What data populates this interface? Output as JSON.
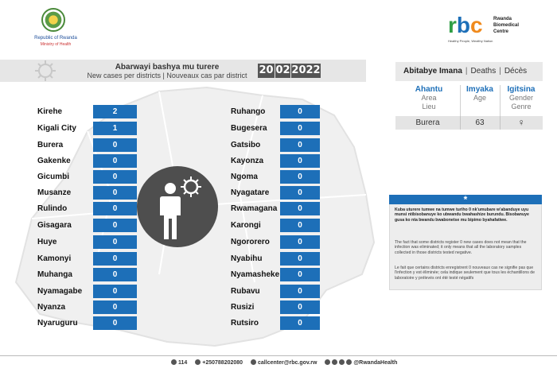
{
  "header": {
    "moh_line1": "Republic of Rwanda",
    "moh_line2": "Ministry of Health",
    "rbc_logo_r": "r",
    "rbc_logo_b": "b",
    "rbc_logo_c": "c",
    "rbc_name_1": "Rwanda",
    "rbc_name_2": "Biomedical",
    "rbc_name_3": "Centre",
    "rbc_tagline": "Healthy People, Wealthy Nation"
  },
  "title": {
    "line1": "Abarwayi bashya mu turere",
    "line2": "New cases per districts  |  Nouveaux cas par district",
    "date_day": "20",
    "date_month": "02",
    "date_year": "2022"
  },
  "districts_left": [
    {
      "name": "Kirehe",
      "value": "2"
    },
    {
      "name": "Kigali City",
      "value": "1"
    },
    {
      "name": "Burera",
      "value": "0"
    },
    {
      "name": "Gakenke",
      "value": "0"
    },
    {
      "name": "Gicumbi",
      "value": "0"
    },
    {
      "name": "Musanze",
      "value": "0"
    },
    {
      "name": "Rulindo",
      "value": "0"
    },
    {
      "name": "Gisagara",
      "value": "0"
    },
    {
      "name": "Huye",
      "value": "0"
    },
    {
      "name": "Kamonyi",
      "value": "0"
    },
    {
      "name": "Muhanga",
      "value": "0"
    },
    {
      "name": "Nyamagabe",
      "value": "0"
    },
    {
      "name": "Nyanza",
      "value": "0"
    },
    {
      "name": "Nyaruguru",
      "value": "0"
    }
  ],
  "districts_right": [
    {
      "name": "Ruhango",
      "value": "0"
    },
    {
      "name": "Bugesera",
      "value": "0"
    },
    {
      "name": "Gatsibo",
      "value": "0"
    },
    {
      "name": "Kayonza",
      "value": "0"
    },
    {
      "name": "Ngoma",
      "value": "0"
    },
    {
      "name": "Nyagatare",
      "value": "0"
    },
    {
      "name": "Rwamagana",
      "value": "0"
    },
    {
      "name": "Karongi",
      "value": "0"
    },
    {
      "name": "Ngororero",
      "value": "0"
    },
    {
      "name": "Nyabihu",
      "value": "0"
    },
    {
      "name": "Nyamasheke",
      "value": "0"
    },
    {
      "name": "Rubavu",
      "value": "0"
    },
    {
      "name": "Rusizi",
      "value": "0"
    },
    {
      "name": "Rutsiro",
      "value": "0"
    }
  ],
  "deaths": {
    "title_rw": "Abitabye Imana",
    "title_en": "Deaths",
    "title_fr": "Décès",
    "col1_a": "Ahantu",
    "col1_b": "Area",
    "col1_c": "Lieu",
    "col2_a": "Imyaka",
    "col2_b": "Age",
    "col3_a": "Igitsina",
    "col3_b": "Gender",
    "col3_c": "Genre",
    "row_place": "Burera",
    "row_age": "63",
    "row_gender": "♀"
  },
  "note": {
    "icon": "*",
    "rw": "Kuba uturere tumwe na tumwe turiho 0 nk'umubare w'abanduye uyu munsi ntibisobanuye ko ubwandu bwahashize burundu. Bisobanuye gusa ko nta bwandu bwabonetse mu bipimo byahafatiwe.",
    "en": "The fact that some districts register 0 new cases does not mean that the infection was eliminated; it only means that all the laboratory samples collected in those districts tested negative.",
    "fr": "Le fait que certains districts enregistrent 0 nouveaux cas ne signifie pas que l'infection y est éliminée; cela indique seulement que tous les échantillons de laboratoire y prélevés ont été testé négatifs"
  },
  "footer": {
    "hotline": "114",
    "phone": "+250788202080",
    "email": "callcenter@rbc.gov.rw",
    "social": "@RwandaHealth"
  },
  "colors": {
    "value_box": "#1d6fb8",
    "date_box": "#555555",
    "circle": "#4e4e4e"
  }
}
